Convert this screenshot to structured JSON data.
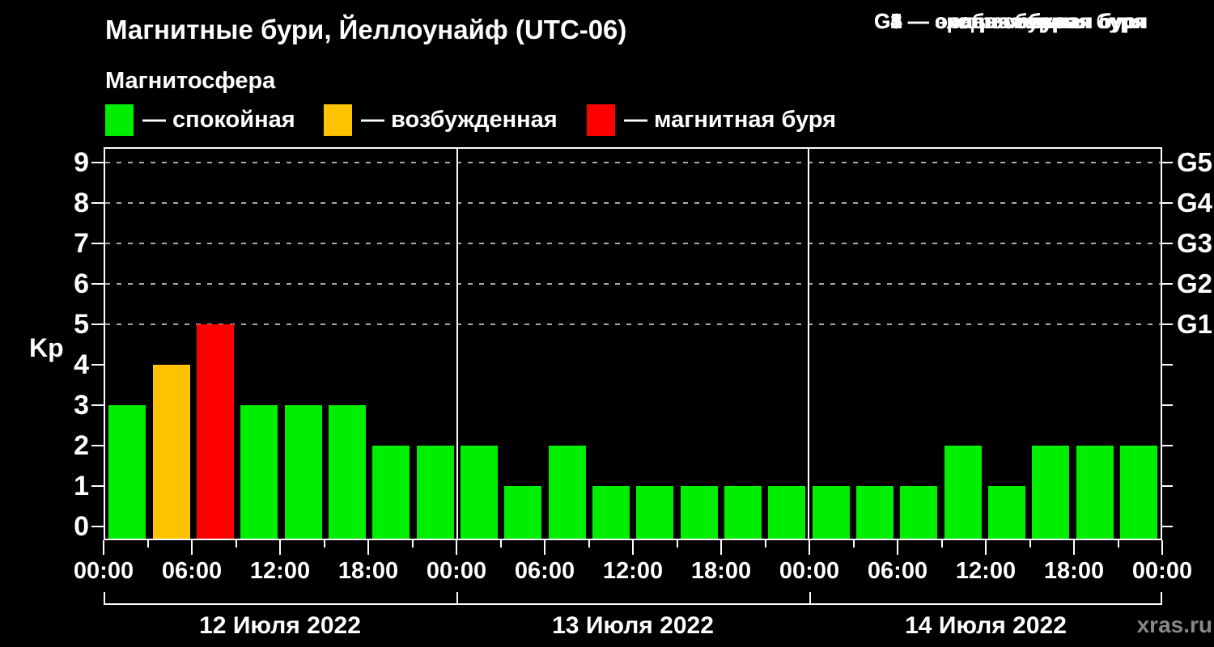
{
  "header": {
    "title": "Магнитные бури, Йеллоунайф (UTC-06)"
  },
  "legend": {
    "title": "Магнитосфера",
    "items": [
      {
        "name": "quiet",
        "label": "— спокойная",
        "color": "#00ee00"
      },
      {
        "name": "excited",
        "label": "— возбужденная",
        "color": "#ffc200"
      },
      {
        "name": "storm",
        "label": "— магнитная буря",
        "color": "#ff0000"
      }
    ]
  },
  "storm_scale": {
    "items": [
      "G1 — слабая буря",
      "G2 — средняя буря",
      "G3 — сильная буря",
      "G4 — очень сильная буря",
      "G5 — экстремальная буря"
    ]
  },
  "watermark": "xras.ru",
  "chart_data": {
    "type": "bar",
    "title": "Магнитные бури, Йеллоунайф (UTC-06)",
    "ylabel": "Kp",
    "ylim": [
      0,
      9.4
    ],
    "bar_interval_hours": 3,
    "y_ticks": [
      0,
      1,
      2,
      3,
      4,
      5,
      6,
      7,
      8,
      9
    ],
    "gridline_levels": [
      5,
      6,
      7,
      8,
      9
    ],
    "grid_style": "dashed",
    "legend_position": "top",
    "right_axis": [
      {
        "label": "G5",
        "kp": 9
      },
      {
        "label": "G4",
        "kp": 8
      },
      {
        "label": "G3",
        "kp": 7
      },
      {
        "label": "G2",
        "kp": 6
      },
      {
        "label": "G1",
        "kp": 5
      }
    ],
    "x_tick_labels": [
      "00:00",
      "06:00",
      "12:00",
      "18:00",
      "00:00",
      "06:00",
      "12:00",
      "18:00",
      "00:00",
      "06:00",
      "12:00",
      "18:00",
      "00:00"
    ],
    "days": [
      {
        "date": "12 Июля 2022",
        "values": [
          3,
          4,
          5,
          3,
          3,
          3,
          2,
          2
        ]
      },
      {
        "date": "13 Июля 2022",
        "values": [
          2,
          1,
          2,
          1,
          1,
          1,
          1,
          1
        ]
      },
      {
        "date": "14 Июля 2022",
        "values": [
          1,
          1,
          1,
          2,
          1,
          2,
          2,
          2
        ]
      }
    ],
    "color_rule": {
      "quiet": "kp <= 3",
      "excited": "kp == 4",
      "storm": "kp >= 5"
    },
    "colors": {
      "quiet": "#00ee00",
      "excited": "#ffc200",
      "storm": "#ff0000",
      "grid": "#aaaaaa",
      "axis": "#ffffff",
      "text": "#ffffff",
      "background": "#000000",
      "watermark": "#888888"
    }
  }
}
